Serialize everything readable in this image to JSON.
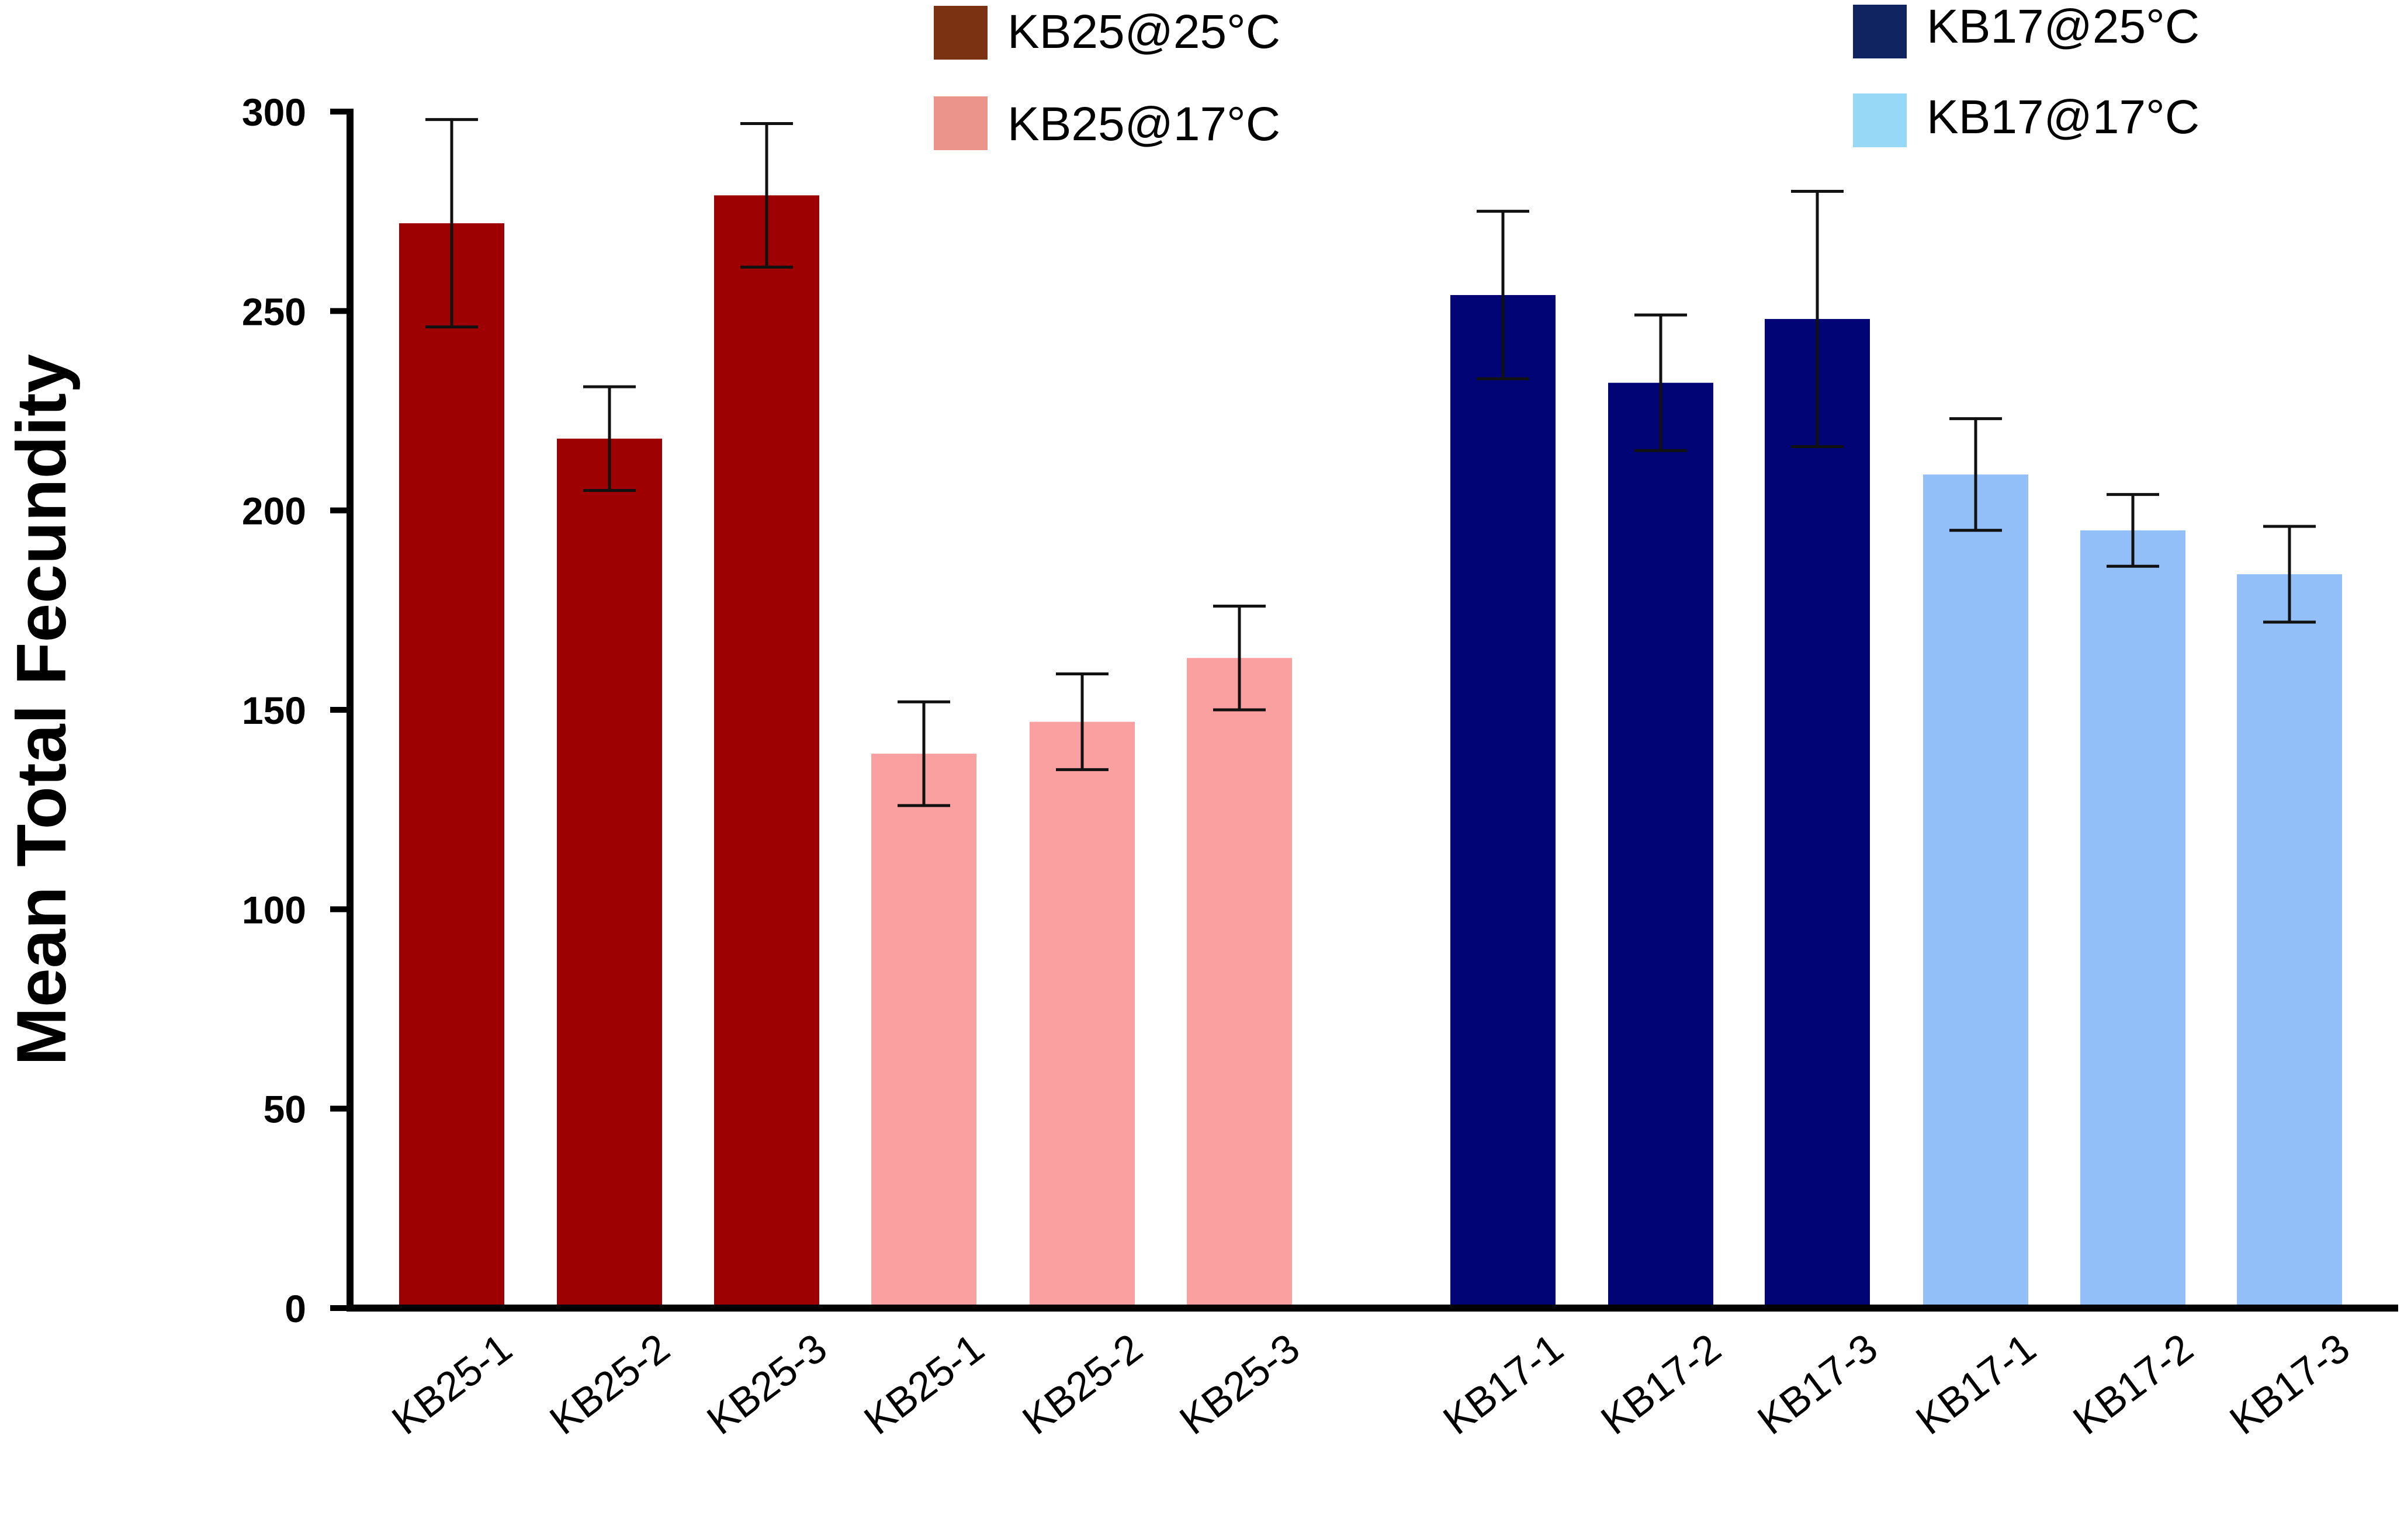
{
  "chart_data": {
    "type": "bar",
    "title": "",
    "xlabel": "",
    "ylabel": "Mean Total Fecundity",
    "ylim": [
      0,
      300
    ],
    "yticks": [
      0,
      50,
      100,
      150,
      200,
      250,
      300
    ],
    "grid": false,
    "legend_position": "top",
    "legend": [
      {
        "label": "KB25@25°C",
        "color": "#7a3213"
      },
      {
        "label": "KB25@17°C",
        "color": "#eb948c"
      },
      {
        "label": "KB17@25°C",
        "color": "#0f2461"
      },
      {
        "label": "KB17@17°C",
        "color": "#96d8f5"
      }
    ],
    "bars": [
      {
        "category": "KB25-1",
        "group": "KB25@25°C",
        "value": 272,
        "error_low": 246,
        "error_high": 298,
        "color": "#9e0101"
      },
      {
        "category": "KB25-2",
        "group": "KB25@25°C",
        "value": 218,
        "error_low": 205,
        "error_high": 231,
        "color": "#9e0101"
      },
      {
        "category": "KB25-3",
        "group": "KB25@25°C",
        "value": 279,
        "error_low": 261,
        "error_high": 297,
        "color": "#9e0101"
      },
      {
        "category": "KB25-1",
        "group": "KB25@17°C",
        "value": 139,
        "error_low": 126,
        "error_high": 152,
        "color": "#faa0a0"
      },
      {
        "category": "KB25-2",
        "group": "KB25@17°C",
        "value": 147,
        "error_low": 135,
        "error_high": 159,
        "color": "#faa0a0"
      },
      {
        "category": "KB25-3",
        "group": "KB25@17°C",
        "value": 163,
        "error_low": 150,
        "error_high": 176,
        "color": "#faa0a0"
      },
      {
        "category": "KB17-1",
        "group": "KB17@25°C",
        "value": 254,
        "error_low": 233,
        "error_high": 275,
        "color": "#000474"
      },
      {
        "category": "KB17-2",
        "group": "KB17@25°C",
        "value": 232,
        "error_low": 215,
        "error_high": 249,
        "color": "#000474"
      },
      {
        "category": "KB17-3",
        "group": "KB17@25°C",
        "value": 248,
        "error_low": 216,
        "error_high": 280,
        "color": "#000474"
      },
      {
        "category": "KB17-1",
        "group": "KB17@17°C",
        "value": 209,
        "error_low": 195,
        "error_high": 223,
        "color": "#92bff8"
      },
      {
        "category": "KB17-2",
        "group": "KB17@17°C",
        "value": 195,
        "error_low": 186,
        "error_high": 204,
        "color": "#92bff8"
      },
      {
        "category": "KB17-3",
        "group": "KB17@17°C",
        "value": 184,
        "error_low": 172,
        "error_high": 196,
        "color": "#92bff8"
      }
    ]
  }
}
